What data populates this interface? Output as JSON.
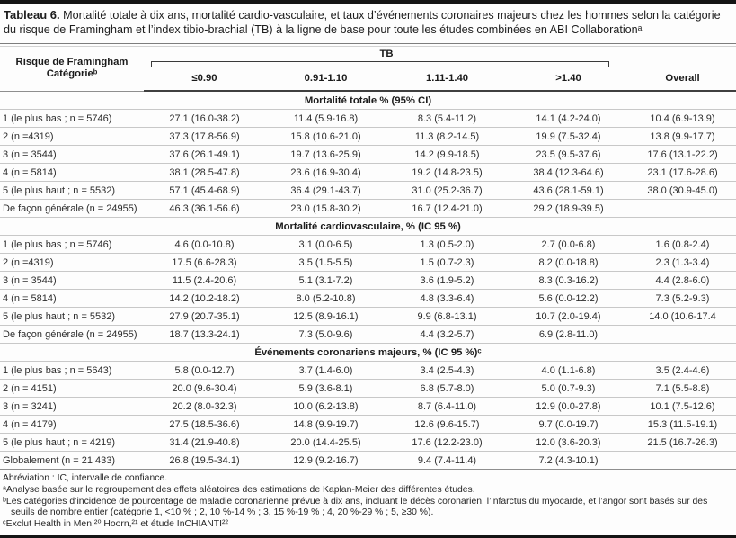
{
  "title": {
    "bold": "Tableau 6.",
    "text": "Mortalité totale à dix ans, mortalité cardio-vasculaire, et taux d’événements coronaires majeurs chez les hommes selon la catégorie du risque de Framingham et l’index tibio-brachial (TB) à la ligne de base pour toute les études combinées en ABI Collaborationᵃ"
  },
  "table": {
    "row_header": {
      "line1": "Risque de Framingham",
      "line2": "Catégorieᵇ"
    },
    "span_header": "TB",
    "columns": [
      "≤0.90",
      "0.91-1.10",
      "1.11-1.40",
      ">1.40"
    ],
    "overall_label": "Overall",
    "sections": [
      {
        "header": "Mortalité totale % (95% CI)",
        "rows": [
          {
            "label": "1 (le plus bas ; n = 5746)",
            "values": [
              "27.1 (16.0-38.2)",
              "11.4 (5.9-16.8)",
              "8.3 (5.4-11.2)",
              "14.1 (4.2-24.0)",
              "10.4 (6.9-13.9)"
            ]
          },
          {
            "label": "2 (n =4319)",
            "values": [
              "37.3 (17.8-56.9)",
              "15.8 (10.6-21.0)",
              "11.3 (8.2-14.5)",
              "19.9 (7.5-32.4)",
              "13.8 (9.9-17.7)"
            ]
          },
          {
            "label": "3 (n = 3544)",
            "values": [
              "37.6 (26.1-49.1)",
              "19.7 (13.6-25.9)",
              "14.2 (9.9-18.5)",
              "23.5 (9.5-37.6)",
              "17.6 (13.1-22.2)"
            ]
          },
          {
            "label": "4 (n = 5814)",
            "values": [
              "38.1 (28.5-47.8)",
              "23.6 (16.9-30.4)",
              "19.2 (14.8-23.5)",
              "38.4 (12.3-64.6)",
              "23.1 (17.6-28.6)"
            ]
          },
          {
            "label": "5 (le plus haut ; n = 5532)",
            "values": [
              "57.1 (45.4-68.9)",
              "36.4 (29.1-43.7)",
              "31.0 (25.2-36.7)",
              "43.6 (28.1-59.1)",
              "38.0 (30.9-45.0)"
            ]
          },
          {
            "label": "De façon générale (n = 24955)",
            "values": [
              "46.3 (36.1-56.6)",
              "23.0 (15.8-30.2)",
              "16.7 (12.4-21.0)",
              "29.2 (18.9-39.5)",
              ""
            ]
          }
        ]
      },
      {
        "header": "Mortalité cardiovasculaire, % (IC 95 %)",
        "rows": [
          {
            "label": "1 (le plus bas ; n = 5746)",
            "values": [
              "4.6 (0.0-10.8)",
              "3.1 (0.0-6.5)",
              "1.3 (0.5-2.0)",
              "2.7 (0.0-6.8)",
              "1.6 (0.8-2.4)"
            ]
          },
          {
            "label": "2 (n =4319)",
            "values": [
              "17.5 (6.6-28.3)",
              "3.5 (1.5-5.5)",
              "1.5 (0.7-2.3)",
              "8.2 (0.0-18.8)",
              "2.3 (1.3-3.4)"
            ]
          },
          {
            "label": "3 (n = 3544)",
            "values": [
              "11.5 (2.4-20.6)",
              "5.1 (3.1-7.2)",
              "3.6 (1.9-5.2)",
              "8.3 (0.3-16.2)",
              "4.4 (2.8-6.0)"
            ]
          },
          {
            "label": "4 (n = 5814)",
            "values": [
              "14.2 (10.2-18.2)",
              "8.0 (5.2-10.8)",
              "4.8 (3.3-6.4)",
              "5.6 (0.0-12.2)",
              "7.3 (5.2-9.3)"
            ]
          },
          {
            "label": "5 (le plus haut ; n = 5532)",
            "values": [
              "27.9 (20.7-35.1)",
              "12.5 (8.9-16.1)",
              "9.9 (6.8-13.1)",
              "10.7 (2.0-19.4)",
              "14.0 (10.6-17.4"
            ]
          },
          {
            "label": "De façon générale (n = 24955)",
            "values": [
              "18.7 (13.3-24.1)",
              "7.3 (5.0-9.6)",
              "4.4 (3.2-5.7)",
              "6.9 (2.8-11.0)",
              ""
            ]
          }
        ]
      },
      {
        "header": "Événements coronariens majeurs, % (IC 95 %)ᶜ",
        "rows": [
          {
            "label": "1 (le plus bas ; n = 5643)",
            "values": [
              "5.8 (0.0-12.7)",
              "3.7 (1.4-6.0)",
              "3.4 (2.5-4.3)",
              "4.0 (1.1-6.8)",
              "3.5 (2.4-4.6)"
            ]
          },
          {
            "label": "2 (n = 4151)",
            "values": [
              "20.0 (9.6-30.4)",
              "5.9 (3.6-8.1)",
              "6.8 (5.7-8.0)",
              "5.0 (0.7-9.3)",
              "7.1 (5.5-8.8)"
            ]
          },
          {
            "label": "3 (n = 3241)",
            "values": [
              "20.2 (8.0-32.3)",
              "10.0 (6.2-13.8)",
              "8.7 (6.4-11.0)",
              "12.9 (0.0-27.8)",
              "10.1 (7.5-12.6)"
            ]
          },
          {
            "label": "4 (n = 4179)",
            "values": [
              "27.5 (18.5-36.6)",
              "14.8 (9.9-19.7)",
              "12.6 (9.6-15.7)",
              "9.7 (0.0-19.7)",
              "15.3 (11.5-19.1)"
            ]
          },
          {
            "label": "5 (le plus haut ; n = 4219)",
            "values": [
              "31.4 (21.9-40.8)",
              "20.0 (14.4-25.5)",
              "17.6 (12.2-23.0)",
              "12.0 (3.6-20.3)",
              "21.5 (16.7-26.3)"
            ]
          },
          {
            "label": "Globalement (n = 21 433)",
            "values": [
              "26.8 (19.5-34.1)",
              "12.9 (9.2-16.7)",
              "9.4 (7.4-11.4)",
              "7.2 (4.3-10.1)",
              ""
            ]
          }
        ]
      }
    ]
  },
  "footnotes": [
    "Abréviation : IC, intervalle de confiance.",
    "ᵃAnalyse basée sur le regroupement des effets aléatoires des estimations de Kaplan-Meier des différentes études.",
    "ᵇLes catégories d’incidence de pourcentage de maladie coronarienne prévue à dix ans, incluant le décès coronarien, l’infarctus du myocarde, et l’angor sont basés sur des seuils de nombre entier (catégorie 1, <10 % ; 2, 10 %-14 % ; 3, 15 %-19 % ; 4, 20 %-29 % ; 5, ≥30 %).",
    "ᶜExclut Health in Men,²⁰ Hoorn,²¹ et étude InCHIANTI²²"
  ]
}
